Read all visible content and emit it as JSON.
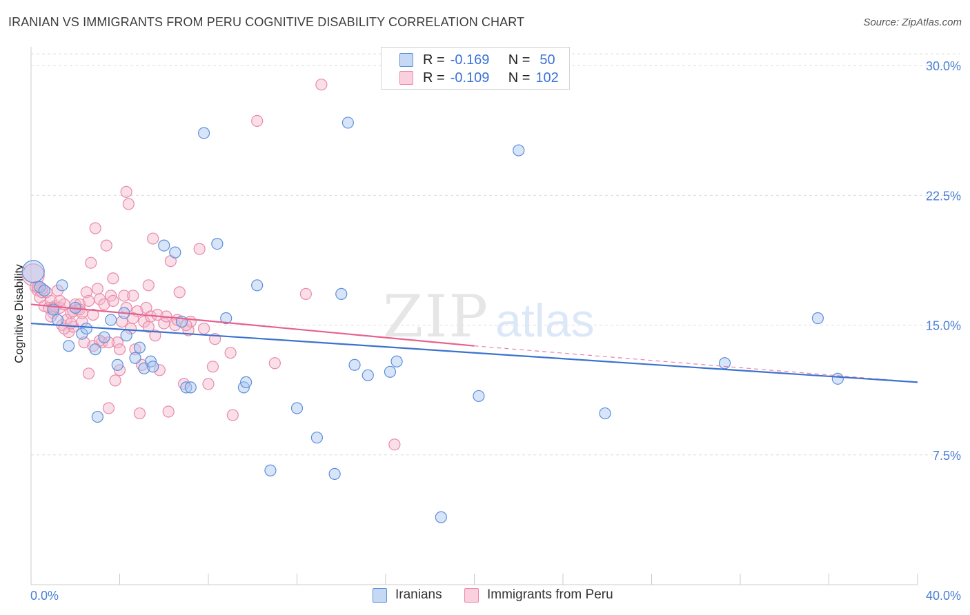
{
  "title": "IRANIAN VS IMMIGRANTS FROM PERU COGNITIVE DISABILITY CORRELATION CHART",
  "source": "Source: ZipAtlas.com",
  "watermark_main": "ZIP",
  "watermark_sub": "atlas",
  "colors": {
    "blue_fill": "#a9c6f0",
    "blue_stroke": "#5b8fdc",
    "blue_line": "#3a72d0",
    "pink_fill": "#f5b8cb",
    "pink_stroke": "#e98aa8",
    "pink_line": "#e8608d",
    "grid": "#dcdcdc",
    "tick_text": "#4a7fd4"
  },
  "legend_top": {
    "rows": [
      {
        "r_label": "R =",
        "r_value": "-0.169",
        "n_label": "N =",
        "n_value": "50"
      },
      {
        "r_label": "R =",
        "r_value": "-0.109",
        "n_label": "N =",
        "n_value": "102"
      }
    ]
  },
  "legend_bottom": {
    "items": [
      {
        "label": "Iranians"
      },
      {
        "label": "Immigrants from Peru"
      }
    ]
  },
  "chart_data": {
    "type": "scatter",
    "title": "IRANIAN VS IMMIGRANTS FROM PERU COGNITIVE DISABILITY CORRELATION CHART",
    "xlabel": "",
    "ylabel": "Cognitive Disability",
    "xlim": [
      0,
      40
    ],
    "ylim": [
      0,
      31
    ],
    "x_tick_labels": [
      "0.0%",
      "40.0%"
    ],
    "y_ticks": [
      7.5,
      15.0,
      22.5,
      30.0
    ],
    "y_tick_labels": [
      "7.5%",
      "15.0%",
      "22.5%",
      "30.0%"
    ],
    "grid": true,
    "legend_position": "top-center",
    "series": [
      {
        "name": "Iranians",
        "r": -0.169,
        "n": 50,
        "trend": {
          "x": [
            0,
            40
          ],
          "y": [
            15.1,
            11.7
          ]
        },
        "points": [
          {
            "x": 0.1,
            "y": 18.1,
            "big": true
          },
          {
            "x": 0.4,
            "y": 17.2
          },
          {
            "x": 0.6,
            "y": 17.0
          },
          {
            "x": 1.0,
            "y": 15.9
          },
          {
            "x": 1.2,
            "y": 15.3
          },
          {
            "x": 1.4,
            "y": 17.3
          },
          {
            "x": 1.7,
            "y": 13.8
          },
          {
            "x": 2.0,
            "y": 16.0
          },
          {
            "x": 2.3,
            "y": 14.5
          },
          {
            "x": 2.5,
            "y": 14.8
          },
          {
            "x": 2.9,
            "y": 13.6
          },
          {
            "x": 3.0,
            "y": 9.7
          },
          {
            "x": 3.3,
            "y": 14.3
          },
          {
            "x": 3.6,
            "y": 15.3
          },
          {
            "x": 3.9,
            "y": 12.7
          },
          {
            "x": 4.2,
            "y": 15.7
          },
          {
            "x": 4.3,
            "y": 14.4
          },
          {
            "x": 4.7,
            "y": 13.1
          },
          {
            "x": 4.9,
            "y": 13.7
          },
          {
            "x": 5.1,
            "y": 12.5
          },
          {
            "x": 5.4,
            "y": 12.9
          },
          {
            "x": 5.5,
            "y": 12.6
          },
          {
            "x": 6.0,
            "y": 19.6
          },
          {
            "x": 6.5,
            "y": 19.2
          },
          {
            "x": 6.8,
            "y": 15.2
          },
          {
            "x": 7.0,
            "y": 11.4
          },
          {
            "x": 7.2,
            "y": 11.4
          },
          {
            "x": 7.8,
            "y": 26.1
          },
          {
            "x": 8.4,
            "y": 19.7
          },
          {
            "x": 8.8,
            "y": 15.4
          },
          {
            "x": 9.6,
            "y": 11.4
          },
          {
            "x": 9.7,
            "y": 11.7
          },
          {
            "x": 10.2,
            "y": 17.3
          },
          {
            "x": 10.8,
            "y": 6.6
          },
          {
            "x": 12.0,
            "y": 10.2
          },
          {
            "x": 12.9,
            "y": 8.5
          },
          {
            "x": 13.7,
            "y": 6.4
          },
          {
            "x": 14.0,
            "y": 16.8
          },
          {
            "x": 14.3,
            "y": 26.7
          },
          {
            "x": 14.6,
            "y": 12.7
          },
          {
            "x": 15.2,
            "y": 12.1
          },
          {
            "x": 16.2,
            "y": 12.3
          },
          {
            "x": 16.5,
            "y": 12.9
          },
          {
            "x": 18.5,
            "y": 3.9
          },
          {
            "x": 20.2,
            "y": 10.9
          },
          {
            "x": 22.0,
            "y": 25.1
          },
          {
            "x": 25.9,
            "y": 9.9
          },
          {
            "x": 31.3,
            "y": 12.8
          },
          {
            "x": 35.5,
            "y": 15.4
          },
          {
            "x": 36.4,
            "y": 11.9
          }
        ]
      },
      {
        "name": "Immigrants from Peru",
        "r": -0.109,
        "n": 102,
        "trend": {
          "x": [
            0,
            20
          ],
          "y": [
            16.2,
            13.8
          ]
        },
        "trend_dashed": {
          "x": [
            20,
            40
          ],
          "y": [
            13.8,
            11.7
          ]
        },
        "points": [
          {
            "x": 0.1,
            "y": 17.9,
            "big": true
          },
          {
            "x": 0.2,
            "y": 17.2
          },
          {
            "x": 0.3,
            "y": 17.0
          },
          {
            "x": 0.4,
            "y": 16.6
          },
          {
            "x": 0.5,
            "y": 16.9
          },
          {
            "x": 0.6,
            "y": 16.1
          },
          {
            "x": 0.7,
            "y": 16.9
          },
          {
            "x": 0.8,
            "y": 16.0
          },
          {
            "x": 0.9,
            "y": 16.4
          },
          {
            "x": 1.0,
            "y": 15.7
          },
          {
            "x": 1.1,
            "y": 16.1
          },
          {
            "x": 1.2,
            "y": 17.0
          },
          {
            "x": 1.3,
            "y": 16.0
          },
          {
            "x": 1.4,
            "y": 15.0
          },
          {
            "x": 1.5,
            "y": 16.2
          },
          {
            "x": 1.6,
            "y": 15.3
          },
          {
            "x": 1.7,
            "y": 14.6
          },
          {
            "x": 1.8,
            "y": 15.7
          },
          {
            "x": 1.9,
            "y": 14.9
          },
          {
            "x": 2.0,
            "y": 16.2
          },
          {
            "x": 2.1,
            "y": 15.9
          },
          {
            "x": 2.2,
            "y": 16.2
          },
          {
            "x": 2.3,
            "y": 15.2
          },
          {
            "x": 2.4,
            "y": 14.0
          },
          {
            "x": 2.5,
            "y": 16.9
          },
          {
            "x": 2.6,
            "y": 12.2
          },
          {
            "x": 2.7,
            "y": 18.6
          },
          {
            "x": 2.8,
            "y": 15.6
          },
          {
            "x": 2.9,
            "y": 20.6
          },
          {
            "x": 3.0,
            "y": 17.1
          },
          {
            "x": 3.1,
            "y": 16.5
          },
          {
            "x": 3.2,
            "y": 14.0
          },
          {
            "x": 3.3,
            "y": 16.2
          },
          {
            "x": 3.4,
            "y": 19.6
          },
          {
            "x": 3.5,
            "y": 10.2
          },
          {
            "x": 3.6,
            "y": 16.7
          },
          {
            "x": 3.7,
            "y": 17.7
          },
          {
            "x": 3.8,
            "y": 11.8
          },
          {
            "x": 3.9,
            "y": 14.0
          },
          {
            "x": 4.0,
            "y": 12.4
          },
          {
            "x": 4.1,
            "y": 15.2
          },
          {
            "x": 4.2,
            "y": 16.7
          },
          {
            "x": 4.3,
            "y": 16.0
          },
          {
            "x": 4.4,
            "y": 22.0
          },
          {
            "x": 4.5,
            "y": 14.8
          },
          {
            "x": 4.6,
            "y": 16.7
          },
          {
            "x": 4.7,
            "y": 13.6
          },
          {
            "x": 4.8,
            "y": 15.8
          },
          {
            "x": 4.9,
            "y": 9.9
          },
          {
            "x": 5.0,
            "y": 12.7
          },
          {
            "x": 5.1,
            "y": 15.2
          },
          {
            "x": 5.2,
            "y": 16.0
          },
          {
            "x": 5.3,
            "y": 17.3
          },
          {
            "x": 5.4,
            "y": 15.5
          },
          {
            "x": 5.5,
            "y": 20.0
          },
          {
            "x": 5.6,
            "y": 14.4
          },
          {
            "x": 5.8,
            "y": 12.4
          },
          {
            "x": 6.0,
            "y": 15.1
          },
          {
            "x": 6.2,
            "y": 10.0
          },
          {
            "x": 6.3,
            "y": 18.7
          },
          {
            "x": 6.5,
            "y": 15.0
          },
          {
            "x": 6.7,
            "y": 16.9
          },
          {
            "x": 6.9,
            "y": 11.6
          },
          {
            "x": 7.1,
            "y": 14.7
          },
          {
            "x": 7.2,
            "y": 15.2
          },
          {
            "x": 7.6,
            "y": 19.4
          },
          {
            "x": 7.8,
            "y": 14.8
          },
          {
            "x": 8.0,
            "y": 11.6
          },
          {
            "x": 8.2,
            "y": 12.6
          },
          {
            "x": 8.3,
            "y": 14.2
          },
          {
            "x": 9.0,
            "y": 13.4
          },
          {
            "x": 9.1,
            "y": 9.8
          },
          {
            "x": 10.2,
            "y": 26.8
          },
          {
            "x": 11.0,
            "y": 12.8
          },
          {
            "x": 12.4,
            "y": 16.8
          },
          {
            "x": 13.1,
            "y": 28.9
          },
          {
            "x": 16.4,
            "y": 8.1
          },
          {
            "x": 4.3,
            "y": 22.7
          },
          {
            "x": 1.9,
            "y": 15.8
          },
          {
            "x": 0.5,
            "y": 17.1
          },
          {
            "x": 2.2,
            "y": 15.9
          },
          {
            "x": 3.7,
            "y": 16.4
          },
          {
            "x": 1.0,
            "y": 16.0
          },
          {
            "x": 2.8,
            "y": 13.8
          },
          {
            "x": 6.6,
            "y": 15.3
          },
          {
            "x": 5.7,
            "y": 15.6
          },
          {
            "x": 4.0,
            "y": 13.6
          },
          {
            "x": 1.5,
            "y": 14.8
          },
          {
            "x": 3.1,
            "y": 14.1
          },
          {
            "x": 0.9,
            "y": 15.5
          },
          {
            "x": 2.6,
            "y": 16.4
          },
          {
            "x": 7.0,
            "y": 15.0
          },
          {
            "x": 0.3,
            "y": 17.2
          },
          {
            "x": 1.8,
            "y": 15.1
          },
          {
            "x": 3.5,
            "y": 14.0
          },
          {
            "x": 4.6,
            "y": 15.4
          },
          {
            "x": 5.3,
            "y": 14.9
          },
          {
            "x": 6.1,
            "y": 15.5
          },
          {
            "x": 2.3,
            "y": 15.7
          },
          {
            "x": 1.3,
            "y": 16.4
          }
        ]
      }
    ]
  }
}
